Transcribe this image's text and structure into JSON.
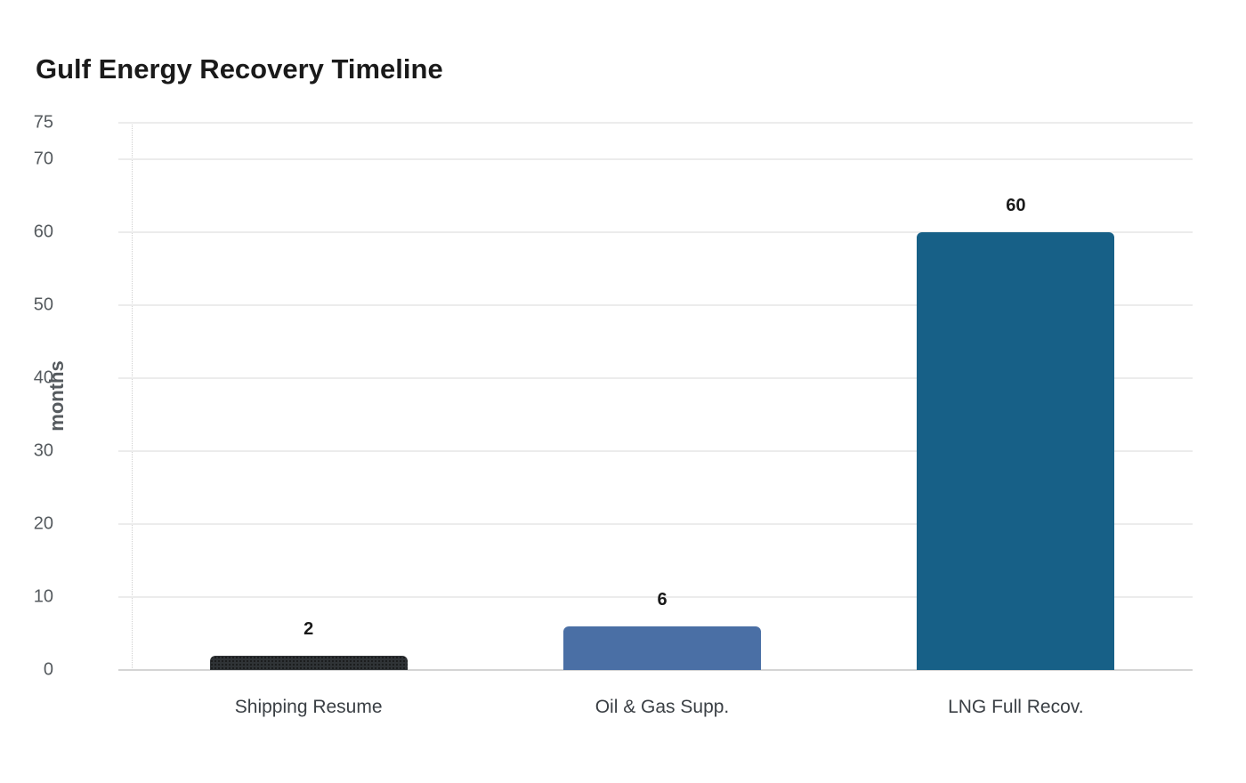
{
  "chart_data": {
    "type": "bar",
    "title": "Gulf Energy Recovery Timeline",
    "xlabel": "",
    "ylabel": "months",
    "ylim": [
      0,
      75
    ],
    "yticks": [
      0,
      10,
      20,
      30,
      40,
      50,
      60,
      70,
      75
    ],
    "grid": true,
    "legend": null,
    "categories": [
      "Shipping Resume",
      "Oil & Gas Supp.",
      "LNG Full Recov."
    ],
    "values": [
      2,
      6,
      60
    ],
    "value_labels": [
      "2",
      "6",
      "60"
    ],
    "colors": [
      "#2f3336",
      "#4a6fa5",
      "#176087"
    ]
  },
  "labels": {
    "title": "Gulf Energy Recovery Timeline",
    "ylabel": "months",
    "yticks": [
      "0",
      "10",
      "20",
      "30",
      "40",
      "50",
      "60",
      "70",
      "75"
    ],
    "bars": [
      {
        "category": "Shipping Resume",
        "value": "2"
      },
      {
        "category": "Oil & Gas Supp.",
        "value": "6"
      },
      {
        "category": "LNG Full Recov.",
        "value": "60"
      }
    ]
  }
}
